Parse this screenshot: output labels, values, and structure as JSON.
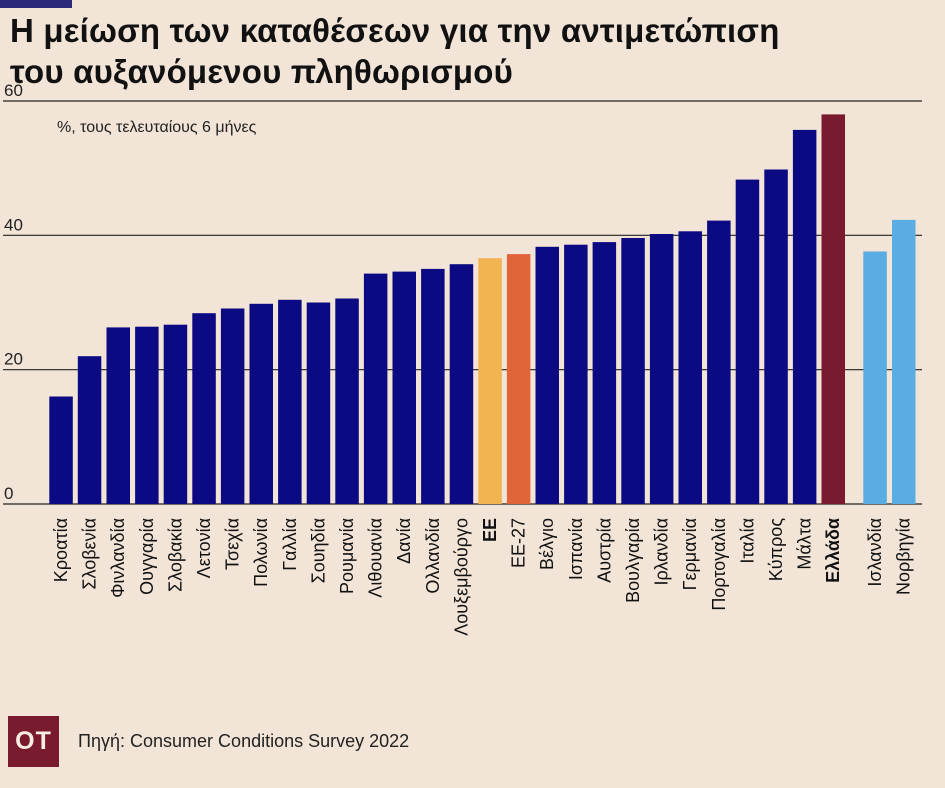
{
  "header": {
    "title_line1": "Η μείωση των καταθέσεων για την αντιμετώπιση",
    "title_line2": "του αυξανόμενου πληθωρισμού"
  },
  "footer": {
    "logo_text": "ΟΤ",
    "source": "Πηγή: Consumer Conditions Survey 2022"
  },
  "colors": {
    "default": "#0c0a82",
    "ee": "#f2b351",
    "ee27": "#e0663a",
    "greece": "#7a1a2e",
    "non_eu": "#5aade3"
  },
  "chart_data": {
    "type": "bar",
    "subtitle": "%, τους τελευταίους 6 μήνες",
    "ylim": [
      0,
      60
    ],
    "yticks": [
      0,
      20,
      40,
      60
    ],
    "grid": true,
    "categories": [
      "Κροατία",
      "Σλοβενία",
      "Φινλανδία",
      "Ουγγαρία",
      "Σλοβακία",
      "Λετονία",
      "Τσεχία",
      "Πολωνία",
      "Γαλλία",
      "Σουηδία",
      "Ρουμανία",
      "Λιθουανία",
      "Δανία",
      "Ολλανδία",
      "Λουξεμβούργο",
      "ΕΕ",
      "ΕΕ-27",
      "Βέλγιο",
      "Ισπανία",
      "Αυστρία",
      "Βουλγαρία",
      "Ιρλανδία",
      "Γερμανία",
      "Πορτογαλία",
      "Ιταλία",
      "Κύπρος",
      "Μάλτα",
      "Ελλάδα",
      "Ισλανδία",
      "Νορβηγία"
    ],
    "values": [
      16,
      22,
      26.3,
      26.4,
      26.7,
      28.4,
      29.1,
      29.8,
      30.4,
      30.0,
      30.6,
      34.3,
      34.6,
      35.0,
      35.7,
      36.6,
      37.2,
      38.3,
      38.6,
      39.0,
      39.6,
      40.2,
      40.6,
      42.2,
      48.3,
      49.8,
      55.7,
      58.0,
      37.6,
      42.3
    ],
    "bar_groups": [
      "default",
      "default",
      "default",
      "default",
      "default",
      "default",
      "default",
      "default",
      "default",
      "default",
      "default",
      "default",
      "default",
      "default",
      "default",
      "ee",
      "ee27",
      "default",
      "default",
      "default",
      "default",
      "default",
      "default",
      "default",
      "default",
      "default",
      "default",
      "greece",
      "non_eu",
      "non_eu"
    ],
    "bold_labels": [
      "ΕΕ",
      "Ελλάδα"
    ]
  }
}
